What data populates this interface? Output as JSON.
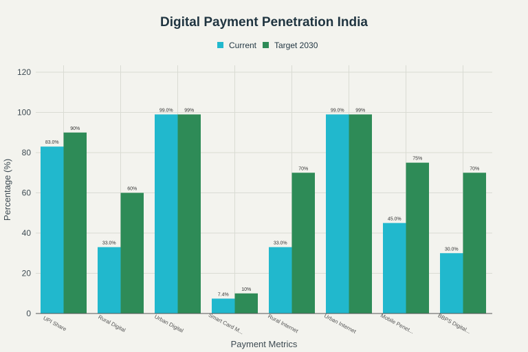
{
  "chart_data": {
    "type": "bar",
    "title": "Digital Payment Penetration India",
    "xlabel": "Payment Metrics",
    "ylabel": "Percentage (%)",
    "ylim": [
      0,
      120
    ],
    "yticks": [
      0,
      20,
      40,
      60,
      80,
      100,
      120
    ],
    "grid": true,
    "legend_position": "top-center",
    "categories": [
      "UPI Share",
      "Rural Digital",
      "Urban Digital",
      "Smart Card M...",
      "Rural Internet",
      "Urban Internet",
      "Mobile Penet...",
      "BBPS Digital..."
    ],
    "series": [
      {
        "name": "Current",
        "color": "#21b8cd",
        "values": [
          83,
          33,
          99,
          7.4,
          33,
          99,
          45,
          30
        ],
        "labels": [
          "83.0%",
          "33.0%",
          "99.0%",
          "7.4%",
          "33.0%",
          "99.0%",
          "45.0%",
          "30.0%"
        ]
      },
      {
        "name": "Target 2030",
        "color": "#2e8b57",
        "values": [
          90,
          60,
          99,
          10,
          70,
          99,
          75,
          70
        ],
        "labels": [
          "90%",
          "60%",
          "99%",
          "10%",
          "70%",
          "99%",
          "75%",
          "70%"
        ]
      }
    ]
  }
}
